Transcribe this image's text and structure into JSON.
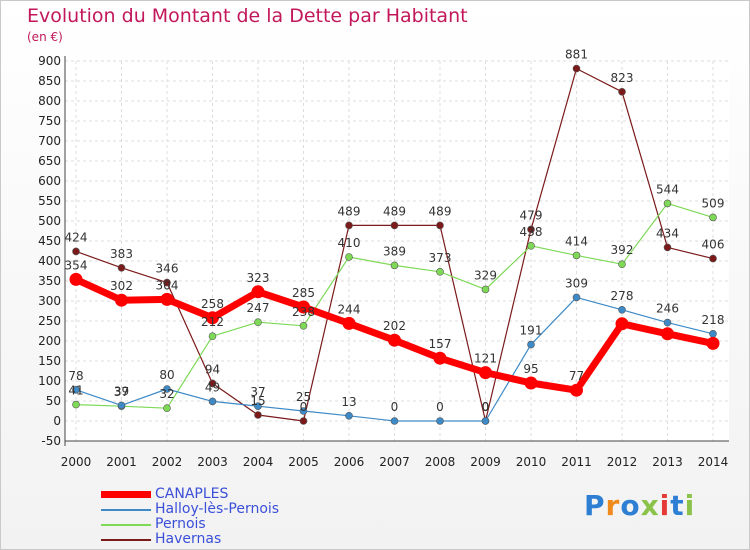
{
  "header": {
    "title": "Evolution du Montant de la Dette par Habitant",
    "subtitle": "(en €)"
  },
  "logo": {
    "letters": [
      "P",
      "r",
      "o",
      "x",
      "i",
      "t",
      "i"
    ],
    "colors": [
      "#2e7fd4",
      "#f08a1c",
      "#2e7fd4",
      "#8bc34a",
      "#e53935",
      "#2e7fd4",
      "#8bc34a"
    ]
  },
  "chart_data": {
    "type": "line",
    "categories": [
      "2000",
      "2001",
      "2002",
      "2003",
      "2004",
      "2005",
      "2006",
      "2007",
      "2008",
      "2009",
      "2010",
      "2011",
      "2012",
      "2013",
      "2014"
    ],
    "ylim": [
      -50,
      900
    ],
    "yticks": [
      -50,
      0,
      50,
      100,
      150,
      200,
      250,
      300,
      350,
      400,
      450,
      500,
      550,
      600,
      650,
      700,
      750,
      800,
      850,
      900
    ],
    "grid": true,
    "legend_position": "bottom-left",
    "series": [
      {
        "name": "CANAPLES",
        "color": "#ff0000",
        "values": [
          354,
          302,
          304,
          258,
          323,
          285,
          244,
          202,
          157,
          121,
          95,
          77,
          243,
          218,
          194
        ],
        "labels": [
          "354",
          "302",
          "304",
          "258",
          "323",
          "285",
          "244",
          "202",
          "157",
          "121",
          "95",
          "77",
          "",
          "",
          ""
        ]
      },
      {
        "name": "Halloy-lès-Pernois",
        "color": "#3d8ac7",
        "values": [
          78,
          39,
          80,
          49,
          37,
          25,
          13,
          0,
          0,
          0,
          191,
          309,
          278,
          246,
          218
        ],
        "labels": [
          "78",
          "39",
          "80",
          "49",
          "37",
          "25",
          "13",
          "0",
          "0",
          "0",
          "191",
          "309",
          "278",
          "246",
          "218"
        ]
      },
      {
        "name": "Pernois",
        "color": "#7ed957",
        "values": [
          41,
          37,
          32,
          212,
          247,
          238,
          410,
          389,
          373,
          329,
          438,
          414,
          392,
          544,
          509
        ],
        "labels": [
          "41",
          "37",
          "32",
          "212",
          "247",
          "238",
          "410",
          "389",
          "373",
          "329",
          "438",
          "414",
          "392",
          "544",
          "509"
        ]
      },
      {
        "name": "Havernas",
        "color": "#7b1a1a",
        "values": [
          424,
          383,
          346,
          94,
          15,
          0,
          489,
          489,
          489,
          0,
          479,
          881,
          823,
          434,
          406
        ],
        "labels": [
          "424",
          "383",
          "346",
          "94",
          "15",
          "0",
          "489",
          "489",
          "489",
          "0",
          "479",
          "881",
          "823",
          "434",
          "406"
        ]
      }
    ]
  }
}
